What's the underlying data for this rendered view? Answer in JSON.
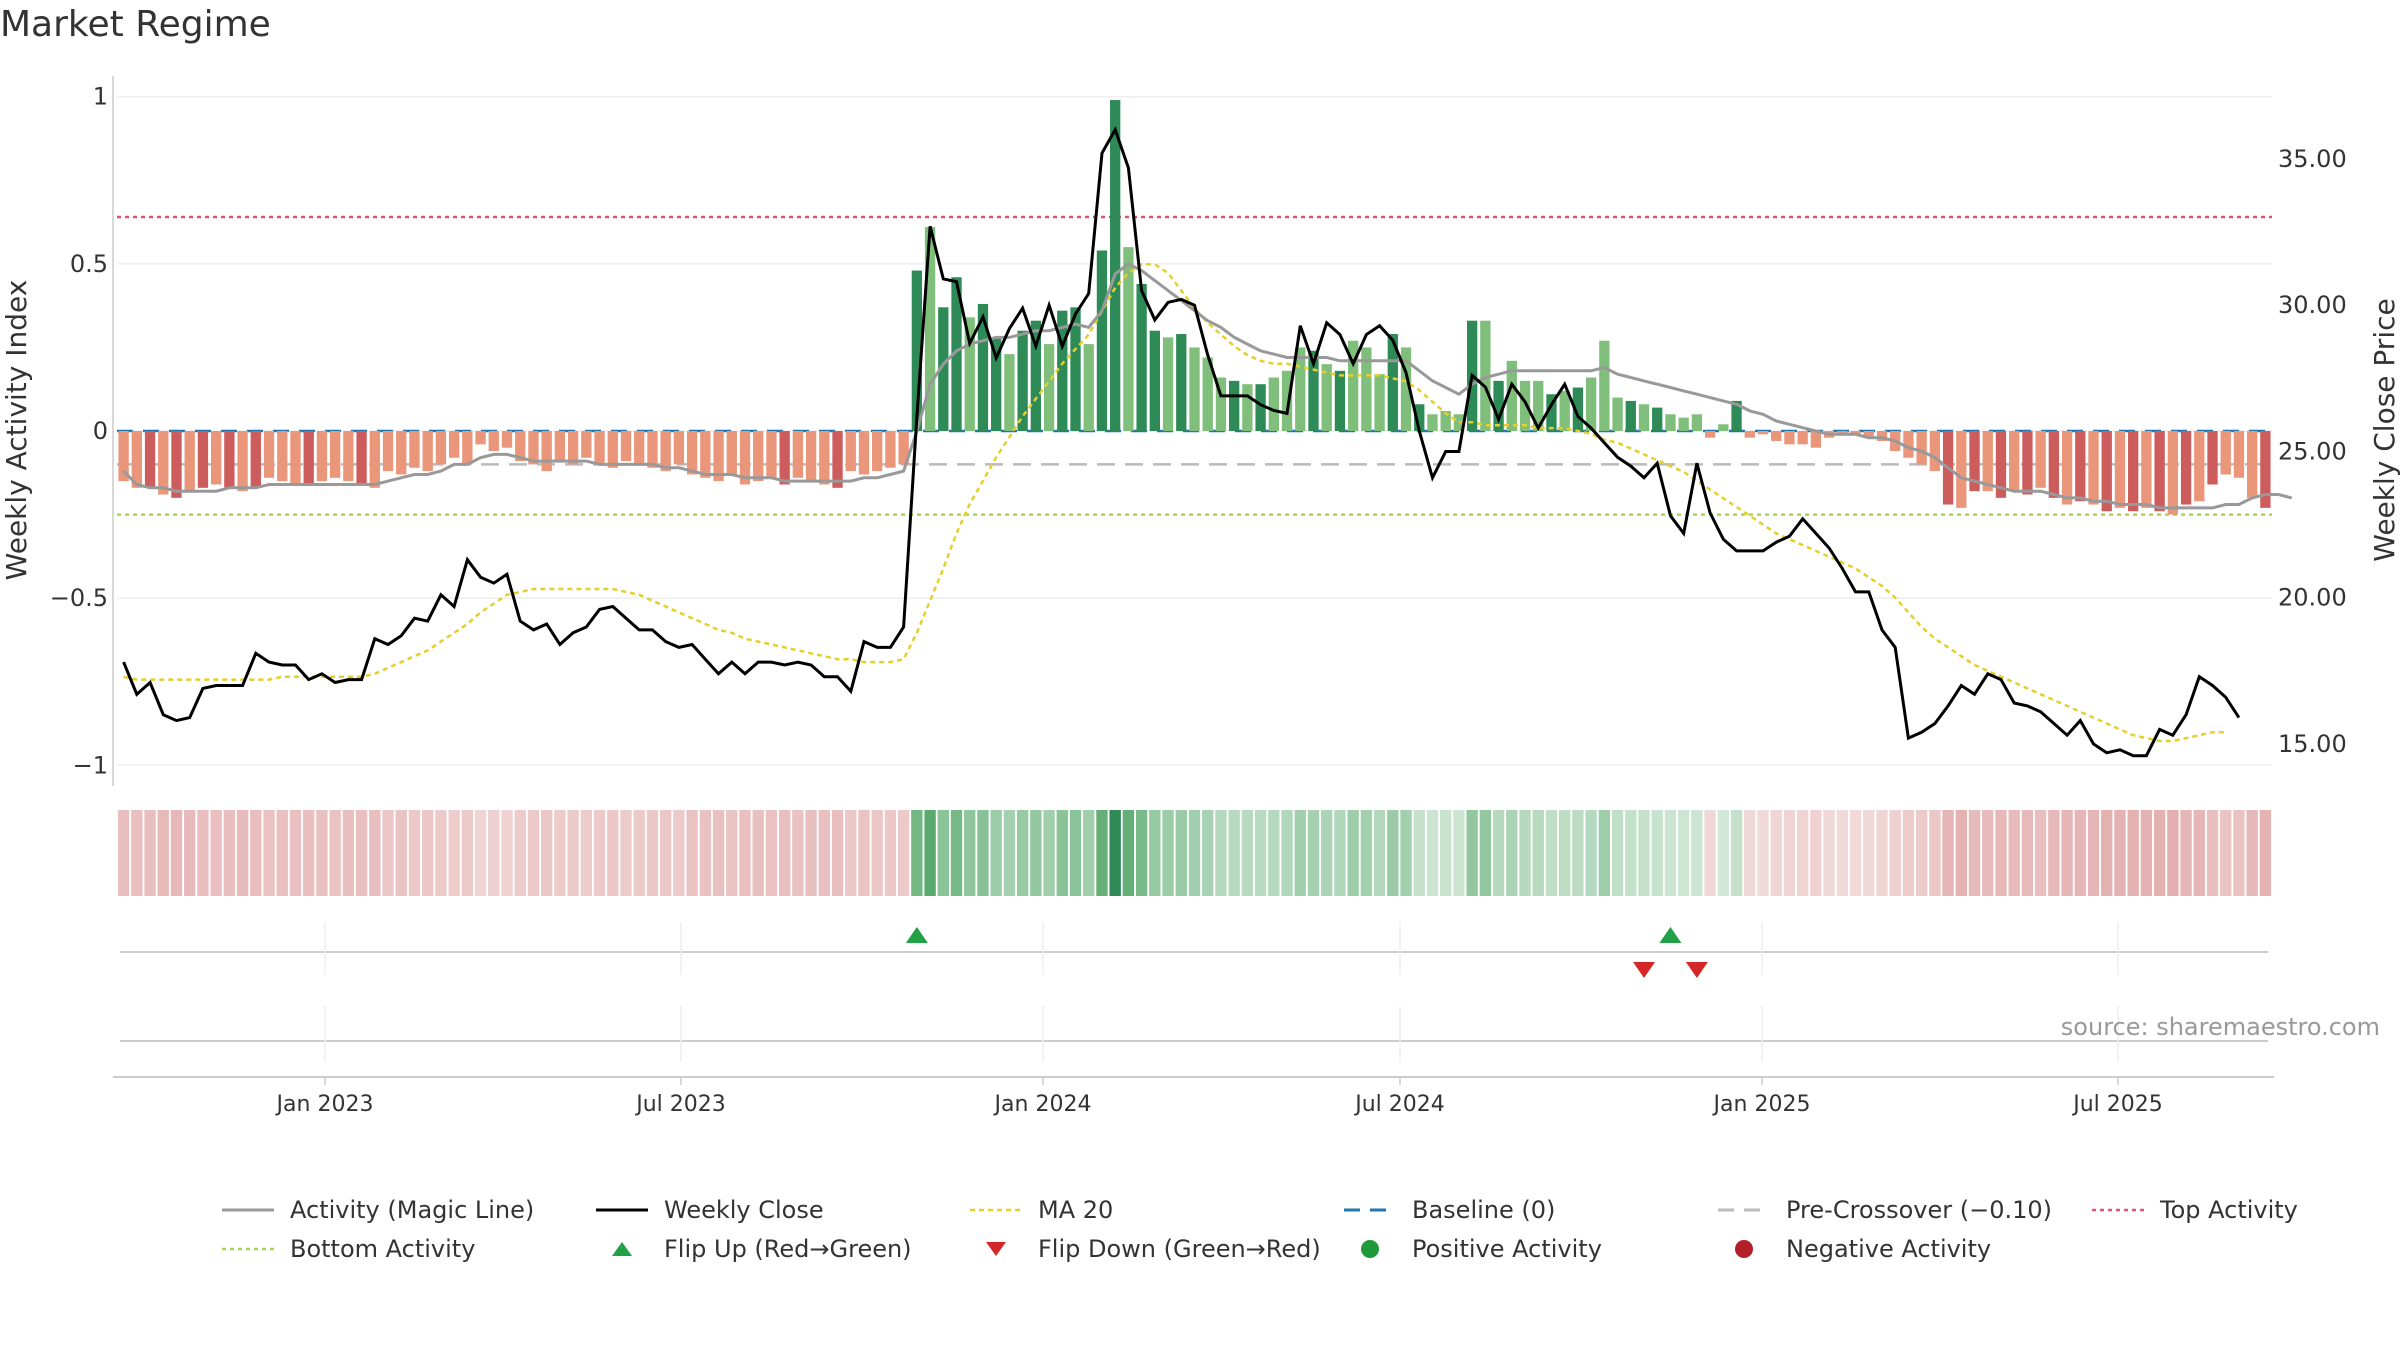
{
  "title": "Market Regime",
  "source": "source: sharemaestro.com",
  "colors": {
    "strong_green": "#2e8b57",
    "light_green": "#7fbf7b",
    "strong_red": "#cd5c5c",
    "light_red": "#e9967a",
    "magic_line": "#999999",
    "close": "#000000",
    "ma20": "#e5cf2d",
    "baseline": "#1f77b4",
    "pre_cross": "#bbbbbb",
    "top": "#e05070",
    "bottom": "#a6d854",
    "flip_up": "#22a045",
    "flip_down": "#d62728"
  },
  "legend": [
    {
      "key": "magic",
      "label": "Activity (Magic Line)",
      "style": "line-gray"
    },
    {
      "key": "close",
      "label": "Weekly Close",
      "style": "line-black"
    },
    {
      "key": "ma20",
      "label": "MA 20",
      "style": "dot-yellow"
    },
    {
      "key": "base",
      "label": "Baseline (0)",
      "style": "dash-blue"
    },
    {
      "key": "pre",
      "label": "Pre-Crossover (−0.10)",
      "style": "dash-gray"
    },
    {
      "key": "top",
      "label": "Top Activity",
      "style": "dot-red"
    },
    {
      "key": "bottom",
      "label": "Bottom Activity",
      "style": "dot-green"
    },
    {
      "key": "flipup",
      "label": "Flip Up (Red→Green)",
      "style": "tri-up"
    },
    {
      "key": "flipdown",
      "label": "Flip Down (Green→Red)",
      "style": "tri-down"
    },
    {
      "key": "pos",
      "label": "Positive Activity",
      "style": "circ-green"
    },
    {
      "key": "neg",
      "label": "Negative Activity",
      "style": "circ-red"
    }
  ],
  "chart_data": {
    "type": "bar",
    "x_start": "2022-10-21",
    "x_ticks": [
      "Jan 2023",
      "Jul 2023",
      "Jan 2024",
      "Jul 2024",
      "Jan 2025",
      "Jul 2025"
    ],
    "y_left": {
      "label": "Weekly Activity Index",
      "range": [
        -1.05,
        1.05
      ],
      "ticks": [
        "1",
        "0.5",
        "0",
        "−0.5",
        "−1"
      ],
      "tick_values": [
        1,
        0.5,
        0,
        -0.5,
        -1
      ]
    },
    "y_right": {
      "label": "Weekly Close Price",
      "range": [
        13.7,
        37.7
      ],
      "ticks": [
        "35.00",
        "30.00",
        "25.00",
        "20.00",
        "15.00"
      ],
      "tick_values": [
        35,
        30,
        25,
        20,
        15
      ]
    },
    "reference_lines": {
      "top": 0.64,
      "baseline": 0,
      "pre_crossover": -0.1,
      "bottom": -0.25
    },
    "activity": [
      -0.15,
      -0.17,
      -0.17,
      -0.19,
      -0.2,
      -0.18,
      -0.17,
      -0.16,
      -0.17,
      -0.18,
      -0.17,
      -0.14,
      -0.15,
      -0.16,
      -0.16,
      -0.15,
      -0.14,
      -0.15,
      -0.16,
      -0.17,
      -0.12,
      -0.13,
      -0.11,
      -0.12,
      -0.1,
      -0.08,
      -0.1,
      -0.04,
      -0.06,
      -0.05,
      -0.09,
      -0.1,
      -0.12,
      -0.09,
      -0.1,
      -0.08,
      -0.1,
      -0.11,
      -0.09,
      -0.1,
      -0.11,
      -0.12,
      -0.1,
      -0.13,
      -0.14,
      -0.15,
      -0.13,
      -0.16,
      -0.15,
      -0.14,
      -0.16,
      -0.14,
      -0.15,
      -0.16,
      -0.17,
      -0.12,
      -0.13,
      -0.12,
      -0.11,
      -0.1,
      0.48,
      0.61,
      0.37,
      0.46,
      0.34,
      0.38,
      0.28,
      0.23,
      0.3,
      0.33,
      0.26,
      0.36,
      0.37,
      0.26,
      0.54,
      0.99,
      0.55,
      0.44,
      0.3,
      0.28,
      0.29,
      0.25,
      0.22,
      0.16,
      0.15,
      0.14,
      0.14,
      0.16,
      0.18,
      0.25,
      0.24,
      0.2,
      0.18,
      0.27,
      0.25,
      0.17,
      0.29,
      0.25,
      0.08,
      0.05,
      0.06,
      0.05,
      0.33,
      0.33,
      0.15,
      0.21,
      0.15,
      0.15,
      0.11,
      0.12,
      0.13,
      0.16,
      0.27,
      0.1,
      0.09,
      0.08,
      0.07,
      0.05,
      0.04,
      0.05,
      -0.02,
      0.02,
      0.09,
      -0.02,
      -0.01,
      -0.03,
      -0.04,
      -0.04,
      -0.05,
      -0.02,
      -0.01,
      -0.01,
      -0.02,
      -0.03,
      -0.06,
      -0.08,
      -0.1,
      -0.12,
      -0.22,
      -0.23,
      -0.18,
      -0.18,
      -0.2,
      -0.18,
      -0.19,
      -0.17,
      -0.2,
      -0.22,
      -0.21,
      -0.22,
      -0.24,
      -0.23,
      -0.24,
      -0.23,
      -0.24,
      -0.25,
      -0.22,
      -0.21,
      -0.16,
      -0.13,
      -0.14,
      -0.2,
      -0.23
    ],
    "magic_line": [
      -0.12,
      -0.16,
      -0.17,
      -0.17,
      -0.18,
      -0.18,
      -0.18,
      -0.18,
      -0.17,
      -0.17,
      -0.17,
      -0.16,
      -0.16,
      -0.16,
      -0.16,
      -0.16,
      -0.16,
      -0.16,
      -0.16,
      -0.16,
      -0.15,
      -0.14,
      -0.13,
      -0.13,
      -0.12,
      -0.1,
      -0.1,
      -0.08,
      -0.07,
      -0.07,
      -0.08,
      -0.09,
      -0.09,
      -0.09,
      -0.09,
      -0.09,
      -0.1,
      -0.1,
      -0.1,
      -0.1,
      -0.1,
      -0.11,
      -0.11,
      -0.12,
      -0.13,
      -0.13,
      -0.13,
      -0.14,
      -0.14,
      -0.14,
      -0.15,
      -0.15,
      -0.15,
      -0.15,
      -0.15,
      -0.15,
      -0.14,
      -0.14,
      -0.13,
      -0.12,
      0.0,
      0.14,
      0.2,
      0.24,
      0.26,
      0.27,
      0.28,
      0.28,
      0.29,
      0.3,
      0.3,
      0.31,
      0.32,
      0.31,
      0.36,
      0.47,
      0.5,
      0.48,
      0.45,
      0.42,
      0.39,
      0.36,
      0.33,
      0.31,
      0.28,
      0.26,
      0.24,
      0.23,
      0.22,
      0.22,
      0.22,
      0.22,
      0.21,
      0.21,
      0.21,
      0.21,
      0.21,
      0.21,
      0.18,
      0.15,
      0.13,
      0.11,
      0.14,
      0.16,
      0.17,
      0.18,
      0.18,
      0.18,
      0.18,
      0.18,
      0.18,
      0.18,
      0.19,
      0.17,
      0.16,
      0.15,
      0.14,
      0.13,
      0.12,
      0.11,
      0.1,
      0.09,
      0.08,
      0.06,
      0.05,
      0.03,
      0.02,
      0.01,
      0.0,
      -0.01,
      -0.01,
      -0.01,
      -0.02,
      -0.02,
      -0.03,
      -0.05,
      -0.06,
      -0.08,
      -0.11,
      -0.14,
      -0.15,
      -0.16,
      -0.17,
      -0.18,
      -0.18,
      -0.18,
      -0.19,
      -0.2,
      -0.2,
      -0.21,
      -0.21,
      -0.22,
      -0.22,
      -0.22,
      -0.23,
      -0.23,
      -0.23,
      -0.23,
      -0.23,
      -0.22,
      -0.22,
      -0.2,
      -0.19,
      -0.19,
      -0.2
    ],
    "weekly_close": [
      17.8,
      16.7,
      17.1,
      16.0,
      15.8,
      15.9,
      16.9,
      17.0,
      17.0,
      17.0,
      18.1,
      17.8,
      17.7,
      17.7,
      17.2,
      17.4,
      17.1,
      17.2,
      17.2,
      18.6,
      18.4,
      18.7,
      19.3,
      19.2,
      20.1,
      19.7,
      21.3,
      20.7,
      20.5,
      20.8,
      19.2,
      18.9,
      19.1,
      18.4,
      18.8,
      19.0,
      19.6,
      19.7,
      19.3,
      18.9,
      18.9,
      18.5,
      18.3,
      18.4,
      17.9,
      17.4,
      17.8,
      17.4,
      17.8,
      17.8,
      17.7,
      17.8,
      17.7,
      17.3,
      17.3,
      16.8,
      18.5,
      18.3,
      18.3,
      19.0,
      26.2,
      32.7,
      30.9,
      30.8,
      28.7,
      29.6,
      28.2,
      29.2,
      29.9,
      28.6,
      30.0,
      28.6,
      29.7,
      30.4,
      35.2,
      36.0,
      34.7,
      30.5,
      29.5,
      30.1,
      30.2,
      30.0,
      28.3,
      26.9,
      26.9,
      26.9,
      26.6,
      26.4,
      26.3,
      29.3,
      28.0,
      29.4,
      29.0,
      28.0,
      29.0,
      29.3,
      28.8,
      27.7,
      25.7,
      24.1,
      25.0,
      25.0,
      27.6,
      27.2,
      26.1,
      27.3,
      26.7,
      25.8,
      26.6,
      27.3,
      26.2,
      25.8,
      25.3,
      24.8,
      24.5,
      24.1,
      24.6,
      22.8,
      22.2,
      24.6,
      22.9,
      22.0,
      21.6,
      21.6,
      21.6,
      21.9,
      22.1,
      22.7,
      22.2,
      21.7,
      21.0,
      20.2,
      20.2,
      18.9,
      18.3,
      15.2,
      15.4,
      15.7,
      16.3,
      17.0,
      16.7,
      17.4,
      17.2,
      16.4,
      16.3,
      16.1,
      15.7,
      15.3,
      15.8,
      15.0,
      14.7,
      14.8,
      14.6,
      14.6,
      15.5,
      15.3,
      16.0,
      17.3,
      17.0,
      16.6,
      15.9
    ],
    "ma20": [
      17.3,
      17.2,
      17.2,
      17.2,
      17.2,
      17.2,
      17.2,
      17.2,
      17.2,
      17.2,
      17.2,
      17.2,
      17.3,
      17.3,
      17.3,
      17.3,
      17.3,
      17.3,
      17.3,
      17.4,
      17.6,
      17.8,
      18.0,
      18.2,
      18.5,
      18.8,
      19.1,
      19.5,
      19.8,
      20.1,
      20.2,
      20.3,
      20.3,
      20.3,
      20.3,
      20.3,
      20.3,
      20.3,
      20.2,
      20.1,
      19.9,
      19.7,
      19.5,
      19.3,
      19.1,
      18.9,
      18.8,
      18.6,
      18.5,
      18.4,
      18.3,
      18.2,
      18.1,
      18.0,
      17.9,
      17.9,
      17.8,
      17.8,
      17.8,
      17.9,
      18.8,
      19.9,
      21.0,
      22.2,
      23.2,
      24.0,
      24.8,
      25.5,
      26.2,
      26.8,
      27.4,
      28.0,
      28.5,
      29.0,
      29.8,
      30.6,
      31.1,
      31.4,
      31.4,
      31.1,
      30.5,
      29.9,
      29.4,
      29.0,
      28.6,
      28.3,
      28.1,
      28.0,
      28.0,
      27.9,
      27.8,
      27.7,
      27.6,
      27.6,
      27.6,
      27.6,
      27.5,
      27.4,
      27.1,
      26.7,
      26.3,
      26.0,
      26.0,
      25.9,
      25.9,
      25.9,
      25.9,
      25.8,
      25.8,
      25.8,
      25.7,
      25.6,
      25.4,
      25.3,
      25.1,
      24.9,
      24.7,
      24.5,
      24.3,
      24.0,
      23.7,
      23.4,
      23.1,
      22.8,
      22.5,
      22.2,
      22.0,
      21.8,
      21.6,
      21.4,
      21.2,
      21.0,
      20.7,
      20.4,
      20.0,
      19.5,
      19.0,
      18.6,
      18.3,
      18.0,
      17.7,
      17.5,
      17.3,
      17.1,
      16.9,
      16.7,
      16.5,
      16.3,
      16.1,
      15.9,
      15.7,
      15.5,
      15.3,
      15.2,
      15.1,
      15.1,
      15.2,
      15.3,
      15.4,
      15.4
    ],
    "flip_up_weeks": [
      60,
      117
    ],
    "flip_down_weeks": [
      115,
      119
    ]
  }
}
